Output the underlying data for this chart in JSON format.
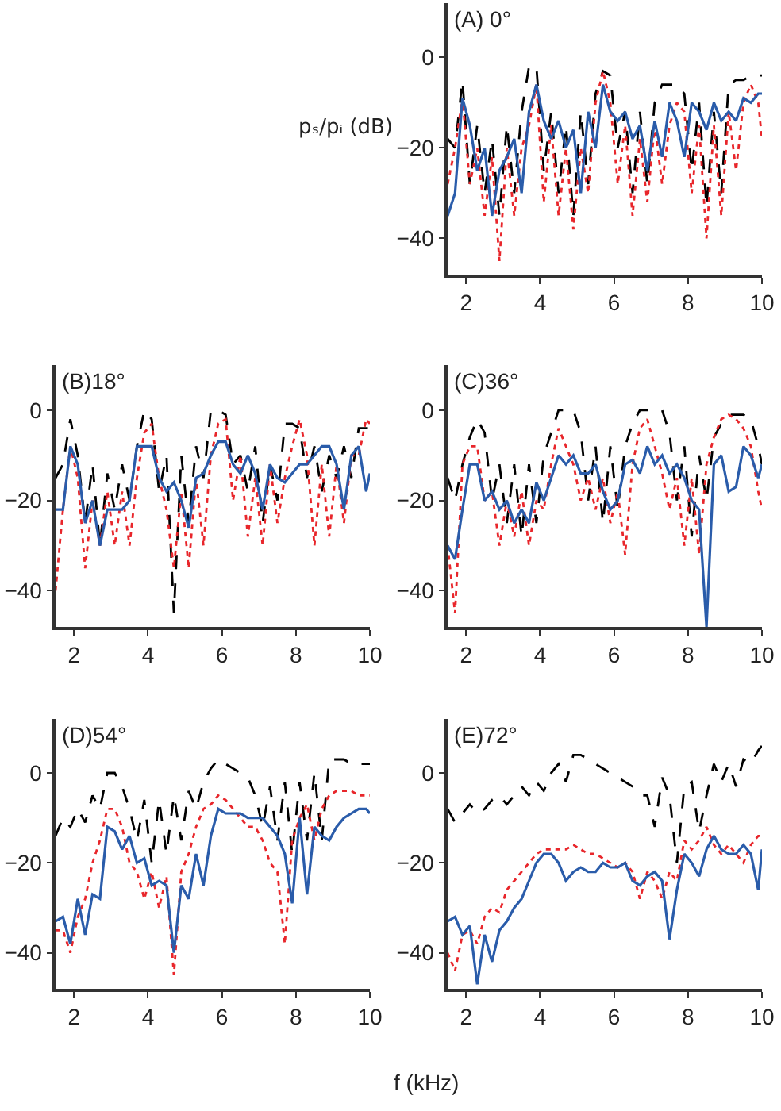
{
  "chart_data": [
    {
      "type": "line",
      "title": "(A) 0°",
      "ylabel": "pₛ/pᵢ (dB)",
      "xlim": [
        1.5,
        10
      ],
      "ylim": [
        -48,
        12
      ],
      "xticks": [
        2,
        4,
        6,
        8,
        10
      ],
      "yticks": [
        -40,
        -20,
        0
      ],
      "marker": "none",
      "x": [
        1.5,
        1.7,
        1.9,
        2.1,
        2.3,
        2.5,
        2.7,
        2.9,
        3.1,
        3.3,
        3.5,
        3.7,
        3.9,
        4.1,
        4.3,
        4.5,
        4.7,
        4.9,
        5.1,
        5.3,
        5.5,
        5.7,
        5.9,
        6.1,
        6.3,
        6.5,
        6.7,
        6.9,
        7.1,
        7.3,
        7.5,
        7.7,
        7.9,
        8.1,
        8.3,
        8.5,
        8.7,
        8.9,
        9.1,
        9.3,
        9.5,
        9.7,
        9.9,
        10.0
      ],
      "series": [
        {
          "color": "#000000",
          "line_style": "dashed",
          "values": [
            -18,
            -20,
            -5,
            -28,
            -15,
            -30,
            -18,
            -35,
            -15,
            -30,
            -12,
            -2,
            -2,
            -25,
            -12,
            -30,
            -15,
            -35,
            -12,
            -28,
            -8,
            -3,
            -4,
            -20,
            -12,
            -30,
            -12,
            -28,
            -10,
            -6,
            -6,
            -6,
            -8,
            -25,
            -10,
            -33,
            -12,
            -30,
            -6,
            -5,
            -5,
            -4,
            -4,
            -4
          ]
        },
        {
          "color": "#e8262b",
          "line_style": "dotted",
          "values": [
            -28,
            -20,
            -9,
            -28,
            -20,
            -35,
            -22,
            -45,
            -20,
            -35,
            -20,
            -15,
            -6,
            -32,
            -15,
            -35,
            -20,
            -38,
            -20,
            -30,
            -10,
            -3,
            -10,
            -28,
            -15,
            -35,
            -18,
            -32,
            -15,
            -28,
            -15,
            -10,
            -12,
            -30,
            -15,
            -40,
            -15,
            -35,
            -12,
            -25,
            -10,
            -6,
            -10,
            -18
          ]
        },
        {
          "color": "#2a5caa",
          "line_style": "solid",
          "values": [
            -35,
            -30,
            -9,
            -15,
            -25,
            -20,
            -35,
            -25,
            -22,
            -18,
            -30,
            -12,
            -6,
            -14,
            -18,
            -14,
            -20,
            -16,
            -30,
            -12,
            -20,
            -6,
            -12,
            -14,
            -12,
            -18,
            -15,
            -25,
            -14,
            -22,
            -10,
            -14,
            -22,
            -10,
            -12,
            -16,
            -10,
            -14,
            -12,
            -14,
            -9,
            -10,
            -8,
            -8
          ]
        }
      ]
    },
    {
      "type": "line",
      "title": "(B)18°",
      "xlim": [
        1.5,
        10
      ],
      "ylim": [
        -48,
        10
      ],
      "xticks": [
        2,
        4,
        6,
        8,
        10
      ],
      "yticks": [
        -40,
        -20,
        0
      ],
      "marker": "none",
      "x": [
        1.5,
        1.7,
        1.9,
        2.1,
        2.3,
        2.5,
        2.7,
        2.9,
        3.1,
        3.3,
        3.5,
        3.7,
        3.9,
        4.1,
        4.3,
        4.5,
        4.7,
        4.9,
        5.1,
        5.3,
        5.5,
        5.7,
        5.9,
        6.1,
        6.3,
        6.5,
        6.7,
        6.9,
        7.1,
        7.3,
        7.5,
        7.7,
        7.9,
        8.1,
        8.3,
        8.5,
        8.7,
        8.9,
        9.1,
        9.3,
        9.5,
        9.7,
        9.9,
        10.0
      ],
      "series": [
        {
          "color": "#000000",
          "line_style": "dashed",
          "values": [
            -15,
            -12,
            -2,
            -10,
            -25,
            -12,
            -30,
            -14,
            -22,
            -12,
            -20,
            -8,
            0,
            -2,
            -18,
            -10,
            -45,
            -10,
            -25,
            -8,
            -15,
            0,
            0,
            -1,
            -12,
            -10,
            -18,
            -8,
            -25,
            -12,
            -20,
            -3,
            -3,
            -4,
            -15,
            -8,
            -18,
            -10,
            -15,
            -8,
            -15,
            -4,
            -4,
            -4
          ]
        },
        {
          "color": "#e8262b",
          "line_style": "dotted",
          "values": [
            -40,
            -22,
            -8,
            -15,
            -35,
            -20,
            -30,
            -18,
            -30,
            -18,
            -30,
            -15,
            -5,
            -3,
            -15,
            -22,
            -35,
            -18,
            -35,
            -15,
            -30,
            -10,
            -3,
            -2,
            -20,
            -10,
            -28,
            -15,
            -30,
            -12,
            -25,
            -15,
            -8,
            -2,
            -10,
            -30,
            -12,
            -28,
            -12,
            -25,
            -10,
            -10,
            -2,
            -3
          ]
        },
        {
          "color": "#2a5caa",
          "line_style": "solid",
          "values": [
            -22,
            -22,
            -8,
            -12,
            -25,
            -20,
            -30,
            -22,
            -22,
            -22,
            -20,
            -8,
            -8,
            -8,
            -15,
            -18,
            -16,
            -20,
            -26,
            -15,
            -14,
            -10,
            -7,
            -7,
            -12,
            -14,
            -10,
            -14,
            -22,
            -12,
            -15,
            -16,
            -14,
            -12,
            -12,
            -10,
            -8,
            -8,
            -12,
            -22,
            -10,
            -8,
            -18,
            -14
          ]
        }
      ]
    },
    {
      "type": "line",
      "title": "(C)36°",
      "xlim": [
        1.5,
        10
      ],
      "ylim": [
        -48,
        10
      ],
      "xticks": [
        2,
        4,
        6,
        8,
        10
      ],
      "yticks": [
        -40,
        -20,
        0
      ],
      "marker": "none",
      "x": [
        1.5,
        1.7,
        1.9,
        2.1,
        2.3,
        2.5,
        2.7,
        2.9,
        3.1,
        3.3,
        3.5,
        3.7,
        3.9,
        4.1,
        4.3,
        4.5,
        4.7,
        4.9,
        5.1,
        5.3,
        5.5,
        5.7,
        5.9,
        6.1,
        6.3,
        6.5,
        6.7,
        6.9,
        7.1,
        7.3,
        7.5,
        7.7,
        7.9,
        8.1,
        8.3,
        8.5,
        8.7,
        8.9,
        9.1,
        9.3,
        9.5,
        9.7,
        9.9,
        10.0
      ],
      "series": [
        {
          "color": "#000000",
          "line_style": "dashed",
          "values": [
            -15,
            -20,
            -12,
            -6,
            -2,
            -5,
            -20,
            -12,
            -25,
            -12,
            -28,
            -12,
            -25,
            -10,
            -5,
            0,
            0,
            0,
            -5,
            -20,
            -8,
            -25,
            -8,
            -22,
            -8,
            -3,
            0,
            0,
            0,
            0,
            -5,
            -20,
            -8,
            -28,
            -10,
            -20,
            -6,
            -3,
            -1,
            -1,
            -1,
            -2,
            -8,
            -12
          ]
        },
        {
          "color": "#e8262b",
          "line_style": "dotted",
          "values": [
            -30,
            -45,
            -12,
            -8,
            -8,
            -20,
            -18,
            -30,
            -20,
            -28,
            -18,
            -30,
            -20,
            -22,
            -12,
            -4,
            -8,
            -12,
            -20,
            -15,
            -22,
            -15,
            -25,
            -18,
            -32,
            -12,
            -4,
            -2,
            -8,
            -14,
            -22,
            -15,
            -30,
            -15,
            -32,
            -12,
            -6,
            -2,
            -1,
            -2,
            -4,
            -8,
            -18,
            -22
          ]
        },
        {
          "color": "#2a5caa",
          "line_style": "solid",
          "values": [
            -30,
            -33,
            -22,
            -12,
            -12,
            -20,
            -18,
            -22,
            -20,
            -25,
            -22,
            -25,
            -16,
            -20,
            -15,
            -10,
            -12,
            -10,
            -14,
            -14,
            -12,
            -18,
            -22,
            -20,
            -12,
            -11,
            -14,
            -8,
            -12,
            -10,
            -14,
            -12,
            -15,
            -20,
            -22,
            -48,
            -12,
            -10,
            -18,
            -17,
            -8,
            -10,
            -15,
            -12
          ]
        }
      ]
    },
    {
      "type": "line",
      "title": "(D)54°",
      "xlim": [
        1.5,
        10
      ],
      "ylim": [
        -48,
        12
      ],
      "xticks": [
        2,
        4,
        6,
        8,
        10
      ],
      "yticks": [
        -40,
        -20,
        0
      ],
      "marker": "none",
      "x": [
        1.5,
        1.7,
        1.9,
        2.1,
        2.3,
        2.5,
        2.7,
        2.9,
        3.1,
        3.3,
        3.5,
        3.7,
        3.9,
        4.1,
        4.3,
        4.5,
        4.7,
        4.9,
        5.1,
        5.3,
        5.5,
        5.7,
        5.9,
        6.1,
        6.3,
        6.5,
        6.7,
        6.9,
        7.1,
        7.3,
        7.5,
        7.7,
        7.9,
        8.1,
        8.3,
        8.5,
        8.7,
        8.9,
        9.1,
        9.3,
        9.5,
        9.7,
        9.9,
        10.0
      ],
      "series": [
        {
          "color": "#000000",
          "line_style": "dashed",
          "values": [
            -14,
            -10,
            -12,
            -8,
            -11,
            -5,
            -8,
            0,
            0,
            -3,
            -8,
            -15,
            -6,
            -20,
            -6,
            -18,
            -5,
            -15,
            -4,
            -8,
            -2,
            1,
            3,
            2,
            1,
            0,
            -1,
            -5,
            -12,
            -3,
            -15,
            -2,
            -18,
            -2,
            -15,
            0,
            -15,
            3,
            3,
            3,
            2,
            2,
            2,
            2
          ]
        },
        {
          "color": "#e8262b",
          "line_style": "dotted",
          "values": [
            -35,
            -35,
            -40,
            -32,
            -28,
            -20,
            -15,
            -8,
            -8,
            -12,
            -20,
            -22,
            -28,
            -22,
            -30,
            -23,
            -45,
            -22,
            -18,
            -12,
            -8,
            -7,
            -5,
            -6,
            -8,
            -10,
            -12,
            -12,
            -15,
            -20,
            -22,
            -38,
            -15,
            -10,
            -7,
            -15,
            -8,
            -5,
            -4,
            -4,
            -4,
            -5,
            -5,
            -5
          ]
        },
        {
          "color": "#2a5caa",
          "line_style": "solid",
          "values": [
            -33,
            -32,
            -38,
            -28,
            -36,
            -27,
            -28,
            -12,
            -13,
            -17,
            -14,
            -20,
            -19,
            -25,
            -24,
            -25,
            -40,
            -25,
            -28,
            -18,
            -25,
            -14,
            -8,
            -9,
            -9,
            -9,
            -10,
            -10,
            -10,
            -12,
            -14,
            -18,
            -29,
            -10,
            -27,
            -12,
            -14,
            -15,
            -12,
            -10,
            -9,
            -8,
            -8,
            -9
          ]
        }
      ]
    },
    {
      "type": "line",
      "title": "(E)72°",
      "xlabel": "f (kHz)",
      "xlim": [
        1.5,
        10
      ],
      "ylim": [
        -48,
        12
      ],
      "xticks": [
        2,
        4,
        6,
        8,
        10
      ],
      "yticks": [
        -40,
        -20,
        0
      ],
      "marker": "none",
      "x": [
        1.5,
        1.7,
        1.9,
        2.1,
        2.3,
        2.5,
        2.7,
        2.9,
        3.1,
        3.3,
        3.5,
        3.7,
        3.9,
        4.1,
        4.3,
        4.5,
        4.7,
        4.9,
        5.1,
        5.3,
        5.5,
        5.7,
        5.9,
        6.1,
        6.3,
        6.5,
        6.7,
        6.9,
        7.1,
        7.3,
        7.5,
        7.7,
        7.9,
        8.1,
        8.3,
        8.5,
        8.7,
        8.9,
        9.1,
        9.3,
        9.5,
        9.7,
        9.9,
        10.0
      ],
      "series": [
        {
          "color": "#000000",
          "line_style": "dashed",
          "values": [
            -8,
            -11,
            -9,
            -7,
            -9,
            -8,
            -6,
            -5,
            -7,
            -5,
            -3,
            -5,
            -2,
            -4,
            0,
            2,
            -2,
            4,
            4,
            3,
            2,
            1,
            0,
            -1,
            -2,
            -3,
            -5,
            -5,
            -12,
            -1,
            -5,
            -20,
            -3,
            -2,
            -13,
            -5,
            2,
            -2,
            2,
            -3,
            3,
            2,
            5,
            6
          ]
        },
        {
          "color": "#e8262b",
          "line_style": "dotted",
          "values": [
            -40,
            -44,
            -36,
            -35,
            -38,
            -32,
            -30,
            -31,
            -26,
            -24,
            -22,
            -20,
            -18,
            -17,
            -17,
            -17,
            -17,
            -16,
            -17,
            -18,
            -18,
            -19,
            -20,
            -21,
            -20,
            -22,
            -28,
            -22,
            -24,
            -28,
            -22,
            -24,
            -15,
            -17,
            -15,
            -12,
            -16,
            -18,
            -16,
            -18,
            -20,
            -16,
            -14,
            -14
          ]
        },
        {
          "color": "#2a5caa",
          "line_style": "solid",
          "values": [
            -33,
            -32,
            -36,
            -34,
            -47,
            -36,
            -42,
            -35,
            -33,
            -30,
            -28,
            -24,
            -20,
            -18,
            -18,
            -20,
            -24,
            -22,
            -21,
            -22,
            -22,
            -20,
            -21,
            -21,
            -20,
            -24,
            -25,
            -23,
            -22,
            -24,
            -37,
            -26,
            -18,
            -20,
            -23,
            -17,
            -14,
            -17,
            -18,
            -18,
            -16,
            -18,
            -26,
            -17
          ]
        }
      ]
    }
  ]
}
